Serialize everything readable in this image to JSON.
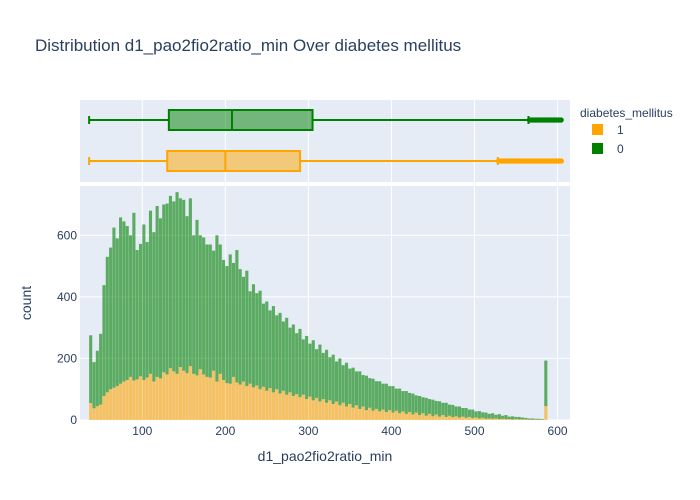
{
  "chart_data": {
    "type": "bar",
    "title": "Distribution d1_pao2fio2ratio_min Over diabetes mellitus",
    "xlabel": "d1_pao2fio2ratio_min",
    "ylabel": "count",
    "xlim": [
      25,
      615
    ],
    "ylim": [
      0,
      760
    ],
    "x_ticks": [
      100,
      200,
      300,
      400,
      500,
      600
    ],
    "y_ticks": [
      0,
      200,
      400,
      600
    ],
    "grid": true,
    "barmode": "stack",
    "legend": {
      "title": "diabetes_mellitus",
      "placement": "top-right",
      "entries": [
        {
          "label": "1",
          "color": "#FFA500"
        },
        {
          "label": "0",
          "color": "#008000"
        }
      ]
    },
    "bin_start": 36,
    "bin_width": 4,
    "series": [
      {
        "name": "1",
        "color": "#FFA500",
        "values": [
          55,
          38,
          45,
          50,
          78,
          90,
          100,
          105,
          110,
          118,
          125,
          130,
          140,
          128,
          132,
          142,
          130,
          138,
          150,
          125,
          140,
          135,
          155,
          148,
          168,
          158,
          150,
          172,
          160,
          152,
          175,
          150,
          145,
          165,
          148,
          140,
          138,
          160,
          125,
          150,
          130,
          120,
          118,
          140,
          122,
          115,
          125,
          110,
          118,
          106,
          112,
          100,
          108,
          95,
          104,
          90,
          100,
          86,
          95,
          82,
          90,
          78,
          84,
          74,
          82,
          68,
          76,
          64,
          72,
          60,
          68,
          56,
          64,
          52,
          60,
          48,
          56,
          44,
          52,
          40,
          48,
          36,
          44,
          32,
          40,
          30,
          36,
          28,
          34,
          26,
          32,
          24,
          30,
          22,
          28,
          20,
          26,
          18,
          24,
          16,
          22,
          14,
          20,
          12,
          18,
          11,
          16,
          10,
          14,
          9,
          12,
          8,
          11,
          7,
          10,
          6,
          8,
          5,
          7,
          4,
          5,
          4,
          5,
          3,
          4,
          3,
          3,
          2,
          3,
          2,
          2,
          2,
          1,
          1,
          1,
          1,
          1,
          45
        ]
      },
      {
        "name": "0",
        "color": "#008000",
        "values": [
          220,
          150,
          180,
          230,
          360,
          440,
          460,
          520,
          480,
          540,
          520,
          500,
          460,
          545,
          420,
          430,
          505,
          440,
          530,
          485,
          555,
          520,
          545,
          555,
          560,
          552,
          590,
          548,
          555,
          510,
          545,
          450,
          505,
          435,
          445,
          430,
          432,
          390,
          475,
          420,
          390,
          380,
          420,
          370,
          430,
          375,
          340,
          375,
          300,
          335,
          300,
          320,
          270,
          290,
          252,
          280,
          240,
          262,
          225,
          250,
          210,
          232,
          198,
          222,
          180,
          205,
          172,
          195,
          158,
          185,
          150,
          172,
          140,
          160,
          130,
          152,
          122,
          142,
          115,
          130,
          110,
          122,
          102,
          112,
          96,
          104,
          90,
          98,
          84,
          92,
          78,
          86,
          72,
          80,
          66,
          74,
          62,
          68,
          56,
          62,
          52,
          58,
          48,
          54,
          44,
          50,
          40,
          46,
          36,
          40,
          32,
          36,
          28,
          32,
          24,
          28,
          20,
          24,
          18,
          20,
          15,
          18,
          12,
          16,
          10,
          13,
          8,
          10,
          7,
          8,
          6,
          5,
          4,
          4,
          3,
          3,
          2,
          148
        ]
      }
    ],
    "box": [
      {
        "name": "0",
        "color": "#008000",
        "min": 36,
        "q1": 132,
        "median": 208,
        "q3": 305,
        "upper_fence": 565,
        "max": 605
      },
      {
        "name": "1",
        "color": "#FFA500",
        "min": 36,
        "q1": 130,
        "median": 200,
        "q3": 290,
        "upper_fence": 528,
        "max": 605
      }
    ]
  }
}
